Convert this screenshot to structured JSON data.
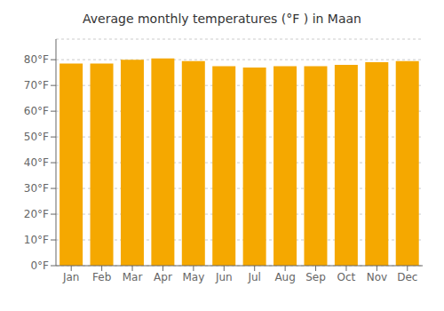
{
  "chart_data": {
    "type": "bar",
    "title": "Average monthly temperatures (°F ) in Maan",
    "categories": [
      "Jan",
      "Feb",
      "Mar",
      "Apr",
      "May",
      "Jun",
      "Jul",
      "Aug",
      "Sep",
      "Oct",
      "Nov",
      "Dec"
    ],
    "values": [
      78.5,
      78.5,
      80.0,
      80.5,
      79.5,
      77.5,
      77.0,
      77.5,
      77.5,
      78.0,
      79.0,
      79.5
    ],
    "color": "#F5A800",
    "ylim": [
      0,
      88
    ],
    "yticks": [
      {
        "value": 0,
        "label": "0°F"
      },
      {
        "value": 10,
        "label": "10°F"
      },
      {
        "value": 20,
        "label": "20°F"
      },
      {
        "value": 30,
        "label": "30°F"
      },
      {
        "value": 40,
        "label": "40°F"
      },
      {
        "value": 50,
        "label": "50°F"
      },
      {
        "value": 60,
        "label": "60°F"
      },
      {
        "value": 70,
        "label": "70°F"
      },
      {
        "value": 80,
        "label": "80°F"
      }
    ],
    "grid": true
  }
}
